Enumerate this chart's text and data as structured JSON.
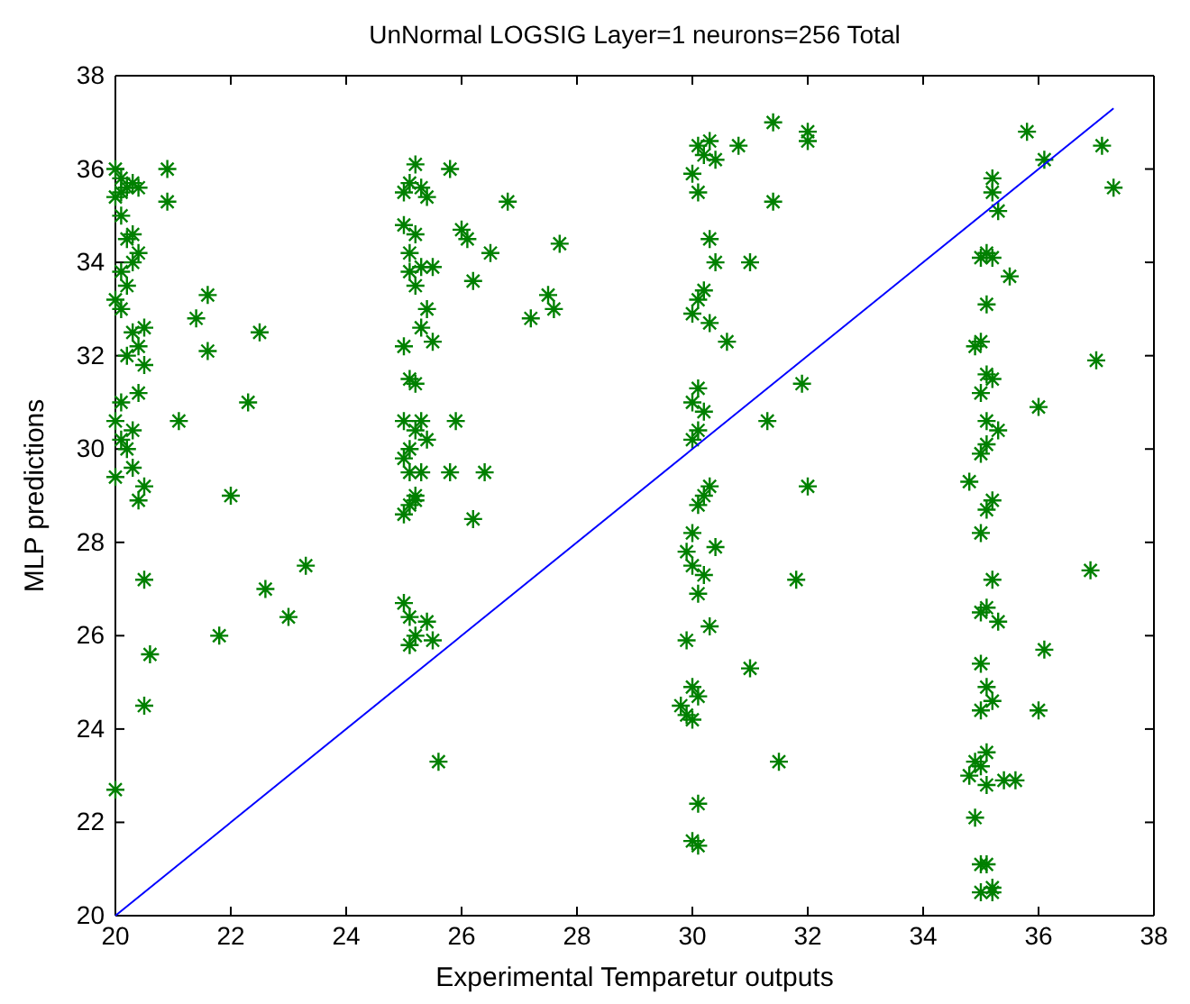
{
  "chart_data": {
    "type": "scatter",
    "title": "UnNormal LOGSIG Layer=1 neurons=256 Total",
    "xlabel": "Experimental Temparetur outputs",
    "ylabel": "MLP predictions",
    "xlim": [
      20,
      38
    ],
    "ylim": [
      20,
      38
    ],
    "xticks": [
      20,
      22,
      24,
      26,
      28,
      30,
      32,
      34,
      36,
      38
    ],
    "yticks": [
      20,
      22,
      24,
      26,
      28,
      30,
      32,
      34,
      36,
      38
    ],
    "grid": false,
    "marker": "cross",
    "series": [
      {
        "color": "#008000",
        "x": [
          20.0,
          20.1,
          20.2,
          20.1,
          20.3,
          20.0,
          20.1,
          20.4,
          20.3,
          20.4,
          20.2,
          20.3,
          20.1,
          20.2,
          20.0,
          20.1,
          20.5,
          20.3,
          20.4,
          20.2,
          20.5,
          20.4,
          20.1,
          20.0,
          20.3,
          20.1,
          20.2,
          20.3,
          20.0,
          20.5,
          20.4,
          20.5,
          20.6,
          20.5,
          20.0,
          20.9,
          20.9,
          21.1,
          21.4,
          21.6,
          21.6,
          21.8,
          22.0,
          22.3,
          22.5,
          22.6,
          23.0,
          23.3,
          25.0,
          25.1,
          25.2,
          25.3,
          25.4,
          25.0,
          25.1,
          25.2,
          25.3,
          25.5,
          25.1,
          25.2,
          25.4,
          25.0,
          25.3,
          25.1,
          25.2,
          25.5,
          25.0,
          25.2,
          25.4,
          25.1,
          25.3,
          25.0,
          25.1,
          25.2,
          25.0,
          25.1,
          25.3,
          25.2,
          25.0,
          25.1,
          25.2,
          25.1,
          25.5,
          25.4,
          25.8,
          26.0,
          26.1,
          26.2,
          26.8,
          26.5,
          27.2,
          27.5,
          27.6,
          27.7,
          26.4,
          25.9,
          25.8,
          26.2,
          25.6,
          30.1,
          30.3,
          30.2,
          30.4,
          30.0,
          30.1,
          30.3,
          30.4,
          30.2,
          30.1,
          30.0,
          30.3,
          30.6,
          30.1,
          30.0,
          30.2,
          30.1,
          30.0,
          30.3,
          30.2,
          30.1,
          30.0,
          30.4,
          29.9,
          30.0,
          30.2,
          30.1,
          30.3,
          29.9,
          30.0,
          30.1,
          29.8,
          29.9,
          30.0,
          30.1,
          30.0,
          30.1,
          30.8,
          31.4,
          31.4,
          32.0,
          32.0,
          31.0,
          31.9,
          31.3,
          32.0,
          31.8,
          31.0,
          31.5,
          35.2,
          35.2,
          35.3,
          35.0,
          35.1,
          35.2,
          35.1,
          35.0,
          34.9,
          35.1,
          35.2,
          35.0,
          35.1,
          35.3,
          35.1,
          35.0,
          35.2,
          35.1,
          34.8,
          35.0,
          35.2,
          35.1,
          35.0,
          35.3,
          35.0,
          35.1,
          35.2,
          35.0,
          35.1,
          34.9,
          35.0,
          35.1,
          34.8,
          34.9,
          35.0,
          35.1,
          35.2,
          35.0,
          35.2,
          35.8,
          36.1,
          37.1,
          37.3,
          37.0,
          36.9,
          36.0,
          36.1,
          36.0,
          35.5,
          35.4,
          35.6
        ],
        "values": [
          36.0,
          35.8,
          35.6,
          35.5,
          35.7,
          35.4,
          35.0,
          35.6,
          34.6,
          34.2,
          34.5,
          34.0,
          33.8,
          33.5,
          33.2,
          33.0,
          32.6,
          32.5,
          32.2,
          32.0,
          31.8,
          31.2,
          31.0,
          30.6,
          30.4,
          30.2,
          30.0,
          29.6,
          29.4,
          29.2,
          28.9,
          27.2,
          25.6,
          24.5,
          22.7,
          36.0,
          35.3,
          30.6,
          32.8,
          33.3,
          32.1,
          26.0,
          29.0,
          31.0,
          32.5,
          27.0,
          26.4,
          27.5,
          35.5,
          35.7,
          36.1,
          35.6,
          35.4,
          34.8,
          34.2,
          34.6,
          33.9,
          33.9,
          33.8,
          33.5,
          33.0,
          32.2,
          32.6,
          31.5,
          31.4,
          32.3,
          30.6,
          30.4,
          30.2,
          30.0,
          30.6,
          29.8,
          29.5,
          29.0,
          28.6,
          28.8,
          29.5,
          28.9,
          26.7,
          26.4,
          26.0,
          25.8,
          25.9,
          26.3,
          36.0,
          34.7,
          34.5,
          33.6,
          35.3,
          34.2,
          32.8,
          33.3,
          33.0,
          34.4,
          29.5,
          30.6,
          29.5,
          28.5,
          23.3,
          36.5,
          36.6,
          36.3,
          36.2,
          35.9,
          35.5,
          34.5,
          34.0,
          33.4,
          33.2,
          32.9,
          32.7,
          32.3,
          31.3,
          31.0,
          30.8,
          30.4,
          30.2,
          29.2,
          29.0,
          28.8,
          28.2,
          27.9,
          27.8,
          27.5,
          27.3,
          26.9,
          26.2,
          25.9,
          24.9,
          24.7,
          24.5,
          24.3,
          24.2,
          22.4,
          21.6,
          21.5,
          36.5,
          37.0,
          35.3,
          36.8,
          36.6,
          34.0,
          31.4,
          30.6,
          29.2,
          27.2,
          25.3,
          23.3,
          35.8,
          35.5,
          35.1,
          34.1,
          34.2,
          34.1,
          33.1,
          32.3,
          32.2,
          31.6,
          31.5,
          31.2,
          30.6,
          30.4,
          30.1,
          29.9,
          28.9,
          28.7,
          29.3,
          28.2,
          27.2,
          26.6,
          26.5,
          26.3,
          25.4,
          24.9,
          24.6,
          24.4,
          23.5,
          23.3,
          23.2,
          22.8,
          23.0,
          22.1,
          21.1,
          21.1,
          20.6,
          20.5,
          20.5,
          36.8,
          36.2,
          36.5,
          35.6,
          31.9,
          27.4,
          30.9,
          25.7,
          24.4,
          33.7,
          22.9,
          22.9
        ]
      },
      {
        "type": "line",
        "color": "#0000ff",
        "marker": "none",
        "x": [
          20,
          37.3
        ],
        "values": [
          20,
          37.3
        ]
      }
    ]
  }
}
